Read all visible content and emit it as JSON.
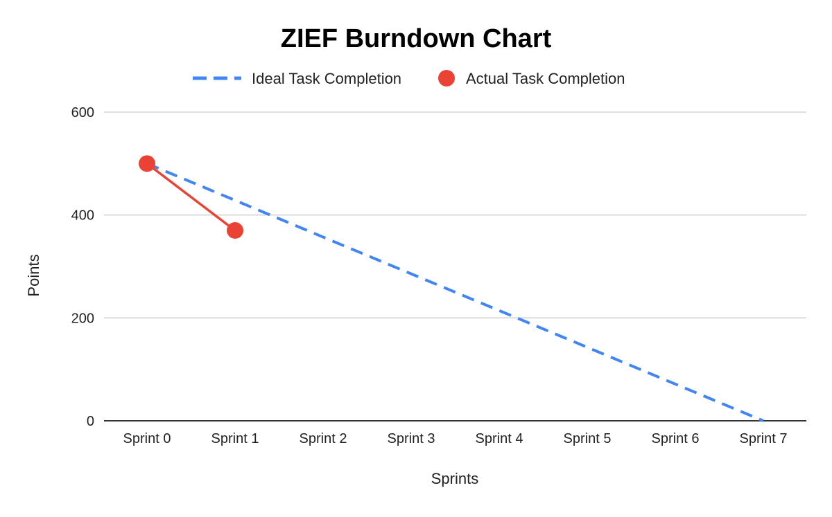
{
  "chart_data": {
    "type": "line",
    "title": "ZIEF Burndown Chart",
    "xlabel": "Sprints",
    "ylabel": "Points",
    "categories": [
      "Sprint 0",
      "Sprint 1",
      "Sprint 2",
      "Sprint 3",
      "Sprint 4",
      "Sprint 5",
      "Sprint 6",
      "Sprint 7"
    ],
    "ylim": [
      0,
      600
    ],
    "yticks": [
      "0",
      "200",
      "400",
      "600"
    ],
    "grid": true,
    "legend_position": "top",
    "series": [
      {
        "name": "Ideal Task Completion",
        "values": [
          500,
          428.6,
          357.1,
          285.7,
          214.3,
          142.9,
          71.4,
          0
        ],
        "color": "#4285f4",
        "style": "dashed"
      },
      {
        "name": "Actual Task Completion",
        "values": [
          500,
          370,
          null,
          null,
          null,
          null,
          null,
          null
        ],
        "color": "#ea4335",
        "style": "line-with-markers"
      }
    ]
  }
}
